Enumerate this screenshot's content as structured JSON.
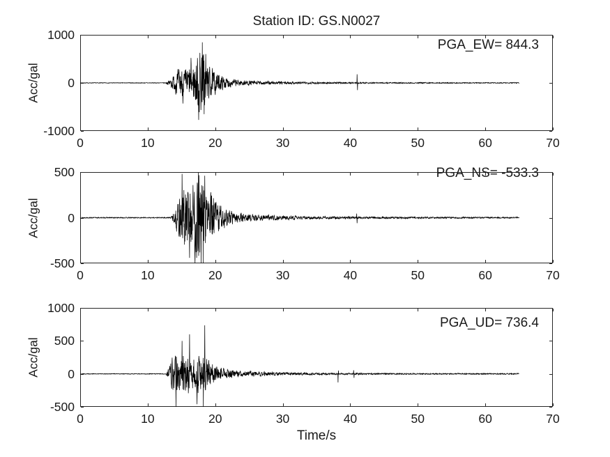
{
  "figure": {
    "title": "Station ID: GS.N0027",
    "xlabel": "Time/s",
    "background_color": "#ffffff",
    "axis_color": "#262626",
    "trace_color": "#000000",
    "grid": false,
    "legend": false
  },
  "chart_data": [
    {
      "type": "line",
      "name": "EW",
      "annotation": "PGA_EW= 844.3",
      "pga": 844.3,
      "ylabel": "Acc/gal",
      "xlim": [
        0,
        70
      ],
      "ylim": [
        -1000,
        1000
      ],
      "xticks": [
        0,
        10,
        20,
        30,
        40,
        50,
        60,
        70
      ],
      "yticks": [
        -1000,
        0,
        1000
      ],
      "signal": {
        "t_end": 65,
        "seed": 7,
        "envelope": [
          [
            0,
            6
          ],
          [
            12.6,
            6
          ],
          [
            13.2,
            60
          ],
          [
            14,
            180
          ],
          [
            14.8,
            300
          ],
          [
            15.5,
            260
          ],
          [
            16.3,
            320
          ],
          [
            17,
            430
          ],
          [
            17.7,
            680
          ],
          [
            18.3,
            620
          ],
          [
            19,
            330
          ],
          [
            19.8,
            240
          ],
          [
            20.6,
            160
          ],
          [
            21.5,
            110
          ],
          [
            22.5,
            75
          ],
          [
            24,
            55
          ],
          [
            26,
            40
          ],
          [
            29,
            30
          ],
          [
            33,
            22
          ],
          [
            37,
            16
          ],
          [
            41,
            13
          ],
          [
            46,
            11
          ],
          [
            52,
            10
          ],
          [
            58,
            9
          ],
          [
            65,
            9
          ]
        ],
        "spikes": [
          [
            15.2,
            -430
          ],
          [
            16.4,
            520
          ],
          [
            17.55,
            -770
          ],
          [
            18.1,
            844.3
          ],
          [
            18.35,
            -650
          ],
          [
            18.6,
            600
          ],
          [
            41.0,
            180
          ],
          [
            41.06,
            -150
          ]
        ]
      }
    },
    {
      "type": "line",
      "name": "NS",
      "annotation": "PGA_NS= -533.3",
      "pga": -533.3,
      "ylabel": "Acc/gal",
      "xlim": [
        0,
        70
      ],
      "ylim": [
        -500,
        500
      ],
      "xticks": [
        0,
        10,
        20,
        30,
        40,
        50,
        60,
        70
      ],
      "yticks": [
        -500,
        0,
        500
      ],
      "signal": {
        "t_end": 65,
        "seed": 13,
        "envelope": [
          [
            0,
            5
          ],
          [
            13.4,
            5
          ],
          [
            14,
            80
          ],
          [
            14.8,
            230
          ],
          [
            15.4,
            330
          ],
          [
            16,
            300
          ],
          [
            16.8,
            380
          ],
          [
            17.6,
            460
          ],
          [
            18.3,
            420
          ],
          [
            19,
            280
          ],
          [
            19.8,
            210
          ],
          [
            20.8,
            140
          ],
          [
            21.8,
            90
          ],
          [
            23,
            55
          ],
          [
            25,
            38
          ],
          [
            28,
            26
          ],
          [
            32,
            18
          ],
          [
            36,
            14
          ],
          [
            41,
            11
          ],
          [
            47,
            9
          ],
          [
            54,
            8
          ],
          [
            65,
            7
          ]
        ],
        "spikes": [
          [
            15.1,
            480
          ],
          [
            16.2,
            -440
          ],
          [
            17.0,
            -510
          ],
          [
            17.5,
            495
          ],
          [
            17.9,
            -533.3
          ],
          [
            18.2,
            -520
          ],
          [
            18.45,
            460
          ],
          [
            40.95,
            45
          ],
          [
            41.0,
            -60
          ]
        ]
      }
    },
    {
      "type": "line",
      "name": "UD",
      "annotation": "PGA_UD= 736.4",
      "pga": 736.4,
      "ylabel": "Acc/gal",
      "xlim": [
        0,
        70
      ],
      "ylim": [
        -500,
        1000
      ],
      "xticks": [
        0,
        10,
        20,
        30,
        40,
        50,
        60,
        70
      ],
      "yticks": [
        -500,
        0,
        500,
        1000
      ],
      "signal": {
        "t_end": 65,
        "seed": 29,
        "envelope": [
          [
            0,
            5
          ],
          [
            12.7,
            5
          ],
          [
            13.1,
            90
          ],
          [
            13.6,
            230
          ],
          [
            14.2,
            290
          ],
          [
            15,
            300
          ],
          [
            16,
            290
          ],
          [
            17,
            275
          ],
          [
            18,
            260
          ],
          [
            18.8,
            230
          ],
          [
            19.6,
            170
          ],
          [
            20.5,
            110
          ],
          [
            21.5,
            75
          ],
          [
            22.8,
            52
          ],
          [
            24.5,
            40
          ],
          [
            27,
            30
          ],
          [
            30,
            23
          ],
          [
            34,
            17
          ],
          [
            38,
            13
          ],
          [
            42,
            11
          ],
          [
            48,
            9
          ],
          [
            55,
            8
          ],
          [
            65,
            8
          ]
        ],
        "spikes": [
          [
            14.2,
            -560
          ],
          [
            15.1,
            500
          ],
          [
            16.2,
            600
          ],
          [
            17.3,
            -460
          ],
          [
            18.25,
            -540
          ],
          [
            18.45,
            736.4
          ],
          [
            38.2,
            -130
          ],
          [
            38.26,
            50
          ],
          [
            40.5,
            55
          ],
          [
            40.56,
            -60
          ]
        ]
      }
    }
  ]
}
